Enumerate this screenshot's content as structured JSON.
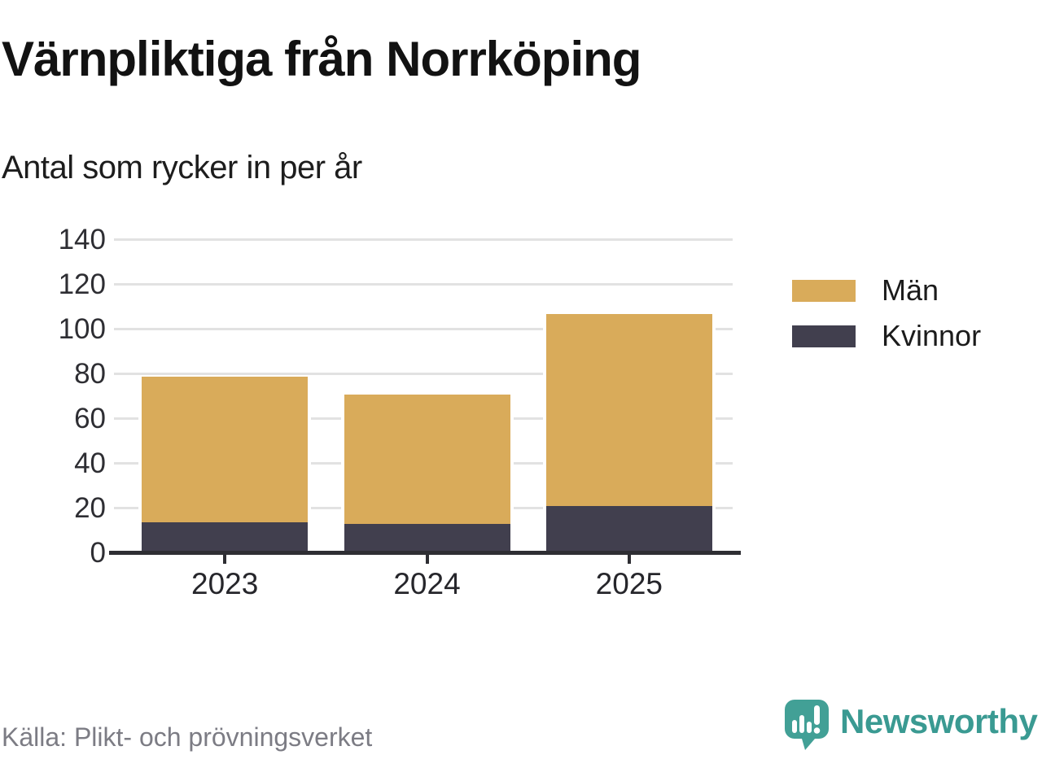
{
  "header": {
    "title": "Värnpliktiga från Norrköping",
    "subtitle": "Antal som rycker in per år"
  },
  "footer": {
    "source": "Källa: Plikt- och prövningsverket",
    "brand": "Newsworthy"
  },
  "colors": {
    "men_gold": "#d9ab5a",
    "women_dark": "#413f4e",
    "brand_teal": "#42a096",
    "wordmark_teal": "#3a9a92",
    "gridline": "#e2e2e2",
    "axis": "#2e2e33",
    "source_text": "#7c7c84"
  },
  "icons": {
    "logo": "newsworthy-speech-bubble-chart-icon"
  },
  "chart_data": {
    "type": "bar",
    "stacked": true,
    "title": "Värnpliktiga från Norrköping",
    "subtitle": "Antal som rycker in per år",
    "categories": [
      "2023",
      "2024",
      "2025"
    ],
    "series": [
      {
        "name": "Män",
        "color": "#d9ab5a",
        "values": [
          65,
          58,
          86
        ]
      },
      {
        "name": "Kvinnor",
        "color": "#413f4e",
        "values": [
          14,
          13,
          21
        ]
      }
    ],
    "stack_order_bottom_to_top": [
      "Kvinnor",
      "Män"
    ],
    "totals": [
      79,
      71,
      107
    ],
    "xlabel": "",
    "ylabel": "",
    "ylim": [
      0,
      140
    ],
    "yticks": [
      0,
      20,
      40,
      60,
      80,
      100,
      120,
      140
    ],
    "grid": true,
    "legend_position": "right"
  }
}
